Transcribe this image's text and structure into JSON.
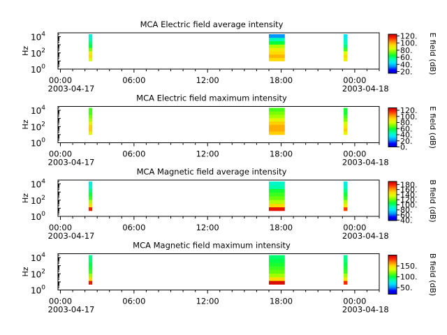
{
  "colors": {
    "background": "#ffffff",
    "axis": "#000000",
    "colormap": [
      "#0000c8",
      "#0000ff",
      "#0096ff",
      "#00e6ff",
      "#00ffb4",
      "#00ff3c",
      "#78ff00",
      "#dcff00",
      "#ffdc00",
      "#ff8c00",
      "#ff2800",
      "#c80000"
    ]
  },
  "chart_data": [
    {
      "type": "heatmap",
      "title": "MCA  Electric field average intensity",
      "ylabel": "Hz",
      "y_scale": "log",
      "ylim": [
        1,
        30000
      ],
      "y_ticks": [
        {
          "base": "10",
          "exp": "0"
        },
        {
          "base": "10",
          "exp": "2"
        },
        {
          "base": "10",
          "exp": "4"
        }
      ],
      "x_ticks": [
        "00:00",
        "06:00",
        "12:00",
        "18:00",
        "00:00"
      ],
      "x_tick_hours": [
        0,
        6,
        12,
        18,
        24
      ],
      "x_dates": [
        "2003-04-17",
        "2003-04-18"
      ],
      "xlim_hours": [
        -0.2,
        26.0
      ],
      "colorbar": {
        "label": "E field (dB)",
        "range": [
          15,
          125
        ],
        "ticks": [
          "20.",
          "40.",
          "60.",
          "80.",
          "100.",
          "120."
        ],
        "tick_values": [
          20,
          40,
          60,
          80,
          100,
          120
        ]
      },
      "segments": [
        {
          "start_hour": 2.3,
          "end_hour": 2.6,
          "intensity_db": [
            85,
            95,
            90,
            75,
            65,
            60,
            55,
            50
          ],
          "freq_range": [
            10,
            20000
          ]
        },
        {
          "start_hour": 17.0,
          "end_hour": 18.3,
          "intensity_db": [
            95,
            100,
            95,
            90,
            80,
            65,
            55,
            35
          ],
          "freq_range": [
            10,
            20000
          ]
        },
        {
          "start_hour": 23.1,
          "end_hour": 23.4,
          "intensity_db": [
            90,
            95,
            85,
            70,
            60,
            55,
            50,
            45
          ],
          "freq_range": [
            10,
            20000
          ]
        }
      ]
    },
    {
      "type": "heatmap",
      "title": "MCA  Electric field maximum intensity",
      "ylabel": "Hz",
      "y_scale": "log",
      "ylim": [
        1,
        30000
      ],
      "y_ticks": [
        {
          "base": "10",
          "exp": "0"
        },
        {
          "base": "10",
          "exp": "2"
        },
        {
          "base": "10",
          "exp": "4"
        }
      ],
      "x_ticks": [
        "00:00",
        "06:00",
        "12:00",
        "18:00",
        "00:00"
      ],
      "x_tick_hours": [
        0,
        6,
        12,
        18,
        24
      ],
      "x_dates": [
        "2003-04-17",
        "2003-04-18"
      ],
      "xlim_hours": [
        -0.2,
        26.0
      ],
      "colorbar": {
        "label": "E field (dB)",
        "range": [
          0,
          128
        ],
        "ticks": [
          "0.",
          "20.",
          "40.",
          "60.",
          "80.",
          "100.",
          "120."
        ],
        "tick_values": [
          0,
          20,
          40,
          60,
          80,
          100,
          120
        ]
      },
      "segments": [
        {
          "start_hour": 2.3,
          "end_hour": 2.6,
          "intensity_db": [
            85,
            95,
            95,
            85,
            75,
            70,
            65,
            65
          ],
          "freq_range": [
            10,
            20000
          ]
        },
        {
          "start_hour": 17.0,
          "end_hour": 18.3,
          "intensity_db": [
            95,
            100,
            100,
            95,
            85,
            75,
            70,
            65
          ],
          "freq_range": [
            10,
            20000
          ]
        },
        {
          "start_hour": 23.1,
          "end_hour": 23.4,
          "intensity_db": [
            85,
            95,
            90,
            80,
            70,
            65,
            60,
            60
          ],
          "freq_range": [
            10,
            20000
          ]
        }
      ]
    },
    {
      "type": "heatmap",
      "title": "MCA  Magnetic field average intensity",
      "ylabel": "Hz",
      "y_scale": "log",
      "ylim": [
        1,
        30000
      ],
      "y_ticks": [
        {
          "base": "10",
          "exp": "0"
        },
        {
          "base": "10",
          "exp": "2"
        },
        {
          "base": "10",
          "exp": "4"
        }
      ],
      "x_ticks": [
        "00:00",
        "06:00",
        "12:00",
        "18:00",
        "00:00"
      ],
      "x_tick_hours": [
        0,
        6,
        12,
        18,
        24
      ],
      "x_dates": [
        "2003-04-17",
        "2003-04-18"
      ],
      "xlim_hours": [
        -0.2,
        26.0
      ],
      "colorbar": {
        "label": "B field (dB)",
        "range": [
          38,
          192
        ],
        "ticks": [
          "40.",
          "60.",
          "80.",
          "100.",
          "120.",
          "140.",
          "160.",
          "180."
        ],
        "tick_values": [
          40,
          60,
          80,
          100,
          120,
          140,
          160,
          180
        ]
      },
      "segments": [
        {
          "start_hour": 2.3,
          "end_hour": 2.6,
          "intensity_db": [
            180,
            150,
            130,
            115,
            110,
            100,
            90,
            85
          ],
          "freq_range": [
            5,
            20000
          ]
        },
        {
          "start_hour": 17.0,
          "end_hour": 18.3,
          "intensity_db": [
            185,
            150,
            130,
            120,
            115,
            110,
            95,
            90
          ],
          "freq_range": [
            5,
            20000
          ]
        },
        {
          "start_hour": 23.1,
          "end_hour": 23.4,
          "intensity_db": [
            175,
            145,
            130,
            115,
            110,
            100,
            90,
            85
          ],
          "freq_range": [
            5,
            20000
          ]
        }
      ]
    },
    {
      "type": "heatmap",
      "title": "MCA  Magnetic field maximum intensity",
      "ylabel": "Hz",
      "y_scale": "log",
      "ylim": [
        1,
        30000
      ],
      "y_ticks": [
        {
          "base": "10",
          "exp": "0"
        },
        {
          "base": "10",
          "exp": "2"
        },
        {
          "base": "10",
          "exp": "4"
        }
      ],
      "x_ticks": [
        "00:00",
        "06:00",
        "12:00",
        "18:00",
        "00:00"
      ],
      "x_tick_hours": [
        0,
        6,
        12,
        18,
        24
      ],
      "x_dates": [
        "2003-04-17",
        "2003-04-18"
      ],
      "xlim_hours": [
        -0.2,
        26.0
      ],
      "colorbar": {
        "label": "B field (dB)",
        "range": [
          20,
          200
        ],
        "ticks": [
          "50.",
          "100.",
          "150."
        ],
        "tick_values": [
          50,
          100,
          150
        ]
      },
      "segments": [
        {
          "start_hour": 2.3,
          "end_hour": 2.6,
          "intensity_db": [
            190,
            150,
            125,
            110,
            105,
            100,
            95,
            90
          ],
          "freq_range": [
            5,
            20000
          ]
        },
        {
          "start_hour": 17.0,
          "end_hour": 18.3,
          "intensity_db": [
            195,
            150,
            125,
            115,
            110,
            105,
            100,
            95
          ],
          "freq_range": [
            5,
            20000
          ]
        },
        {
          "start_hour": 23.1,
          "end_hour": 23.4,
          "intensity_db": [
            185,
            145,
            125,
            110,
            105,
            100,
            95,
            90
          ],
          "freq_range": [
            5,
            20000
          ]
        }
      ]
    }
  ]
}
